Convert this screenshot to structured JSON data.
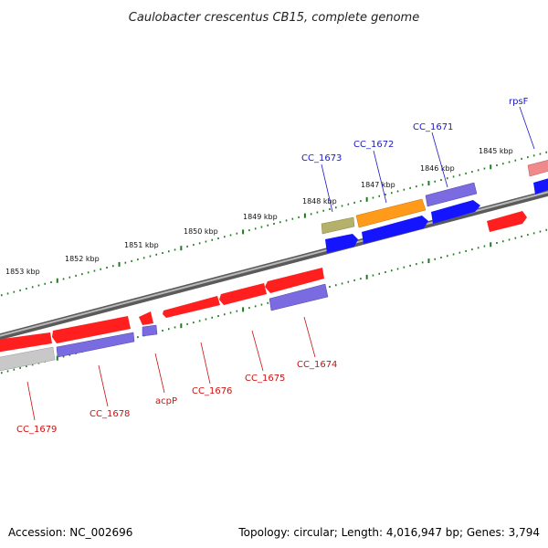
{
  "title": "Caulobacter crescentus CB15, complete genome",
  "accession": "Accession: NC_002696",
  "topology": "Topology: circular; Length: 4,016,947 bp; Genes: 3,794",
  "colors": {
    "backbone": "#8a8a8a",
    "tick": "#1f7a1f",
    "label_forward": "#1a1acc",
    "label_reverse": "#cc1111",
    "red": "#ff1f1f",
    "blue": "#1414ff",
    "purple": "#7a6be0",
    "navy": "#0c0c80",
    "olive": "#b5b06a",
    "orange": "#ff9a1a",
    "pink": "#f08a8a",
    "gray": "#c8c8c8"
  },
  "kbp_labels": [
    "1853 kbp",
    "1852 kbp",
    "1851 kbp",
    "1850 kbp",
    "1849 kbp",
    "1848 kbp",
    "1847 kbp",
    "1846 kbp",
    "1845 kbp"
  ],
  "gene_labels_forward": [
    "CC_1673",
    "CC_1672",
    "CC_1671",
    "rpsF"
  ],
  "gene_labels_reverse": [
    "CC_1679",
    "CC_1678",
    "acpP",
    "CC_1676",
    "CC_1675",
    "CC_1674"
  ]
}
